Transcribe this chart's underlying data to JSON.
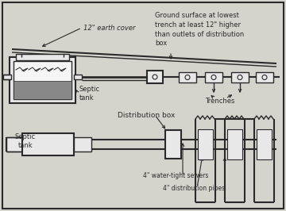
{
  "bg_color": "#d4d3cc",
  "border_color": "#333333",
  "line_color": "#2a2a2a",
  "fill_light": "#e8e8e8",
  "fill_gray": "#aaaaaa",
  "fill_dark_gray": "#888888",
  "fill_white": "#f5f5f5",
  "annotations": {
    "earth_cover": "12\" earth cover",
    "ground_surface": "Ground surface at lowest\ntrench at least 12\" higher\nthan outlets of distribution\nbox",
    "septic_tank_top": "Septic\ntank",
    "septic_tank_bottom": "Septic\ntank",
    "distribution_box": "Distribution box",
    "trenches": "Trenches",
    "water_tight": "4\" water-tight sewers",
    "dist_pipes": "4\" distribution pipes"
  },
  "fig_width": 3.6,
  "fig_height": 2.66,
  "dpi": 100
}
